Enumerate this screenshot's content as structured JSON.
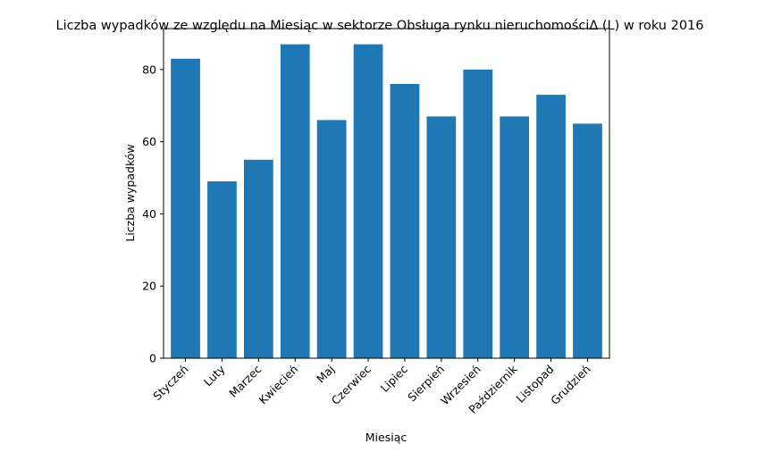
{
  "chart_data": {
    "type": "bar",
    "title": "Liczba wypadków ze względu na Miesiąc w sektorze  Obsługa rynku nieruchomościΔ  (L) w roku 2016",
    "xlabel": "Miesiąc",
    "ylabel": "Liczba wypadków",
    "categories": [
      "Styczeń",
      "Luty",
      "Marzec",
      "Kwiecień",
      "Maj",
      "Czerwiec",
      "Lipiec",
      "Sierpień",
      "Wrzesień",
      "Październik",
      "Listopad",
      "Grudzień"
    ],
    "values": [
      83,
      49,
      55,
      87,
      66,
      87,
      76,
      67,
      80,
      67,
      73,
      65
    ],
    "ylim": [
      0,
      91.35
    ],
    "yticks": [
      0,
      20,
      40,
      60,
      80
    ],
    "bar_color": "#1f77b4",
    "grid": false,
    "legend": "none"
  }
}
